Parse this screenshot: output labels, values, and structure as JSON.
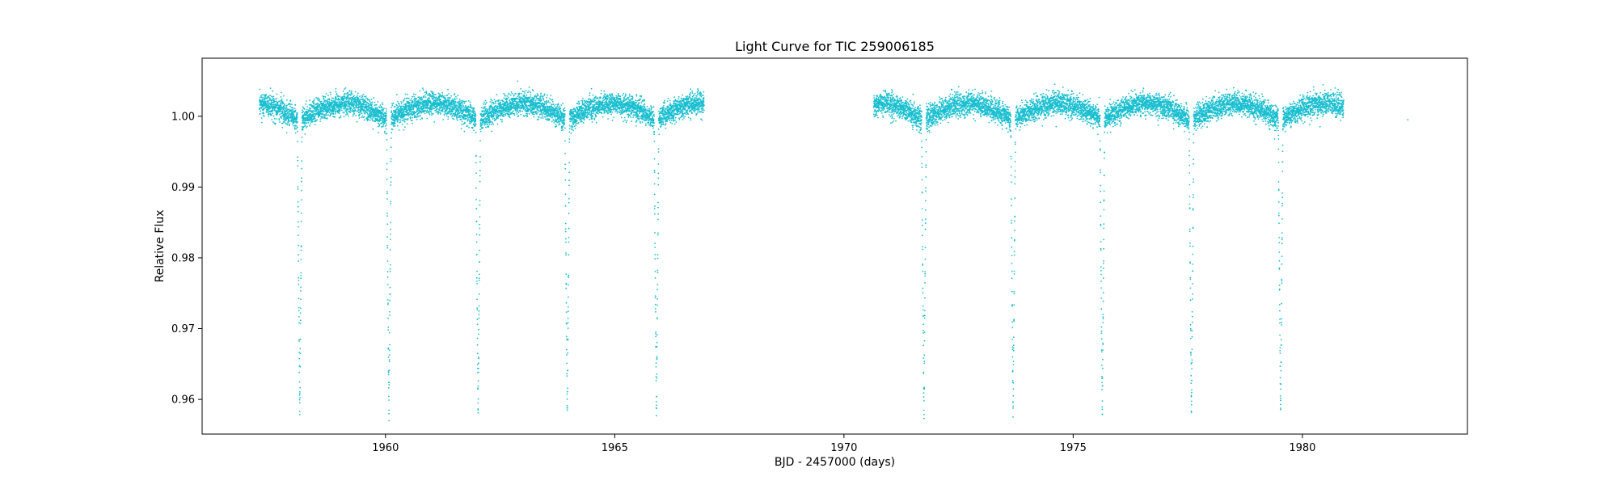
{
  "chart_data": {
    "type": "scatter",
    "title": "Light Curve for TIC 259006185",
    "xlabel": "BJD - 2457000 (days)",
    "ylabel": "Relative Flux",
    "xlim": [
      1956.0,
      1983.6
    ],
    "ylim": [
      0.9551,
      1.0082
    ],
    "x_ticks": [
      1960,
      1965,
      1970,
      1975,
      1980
    ],
    "x_tick_labels": [
      "1960",
      "1965",
      "1970",
      "1975",
      "1980"
    ],
    "y_ticks": [
      0.96,
      0.97,
      0.98,
      0.99,
      1.0
    ],
    "y_tick_labels": [
      "0.96",
      "0.97",
      "0.98",
      "0.99",
      "1.00"
    ],
    "grid": false,
    "legend": "none",
    "series_color": "#17becf",
    "segments": [
      {
        "x_start": 1957.25,
        "x_end": 1966.95
      },
      {
        "x_start": 1970.65,
        "x_end": 1980.9
      }
    ],
    "isolated_points": [
      {
        "x": 1982.3,
        "y": 0.9995
      }
    ],
    "eclipse_period": 1.945,
    "eclipse_epoch": 1958.13,
    "eclipse_depth_min": 0.959,
    "eclipse_times": [
      1958.13,
      1960.07,
      1962.02,
      1963.96,
      1965.91,
      1971.74,
      1973.69,
      1975.63,
      1977.58,
      1979.52
    ],
    "baseline_flux": 1.0005,
    "modulation_amplitude": 0.002,
    "scatter_sigma": 0.0008,
    "cadence_days": 0.0014
  }
}
